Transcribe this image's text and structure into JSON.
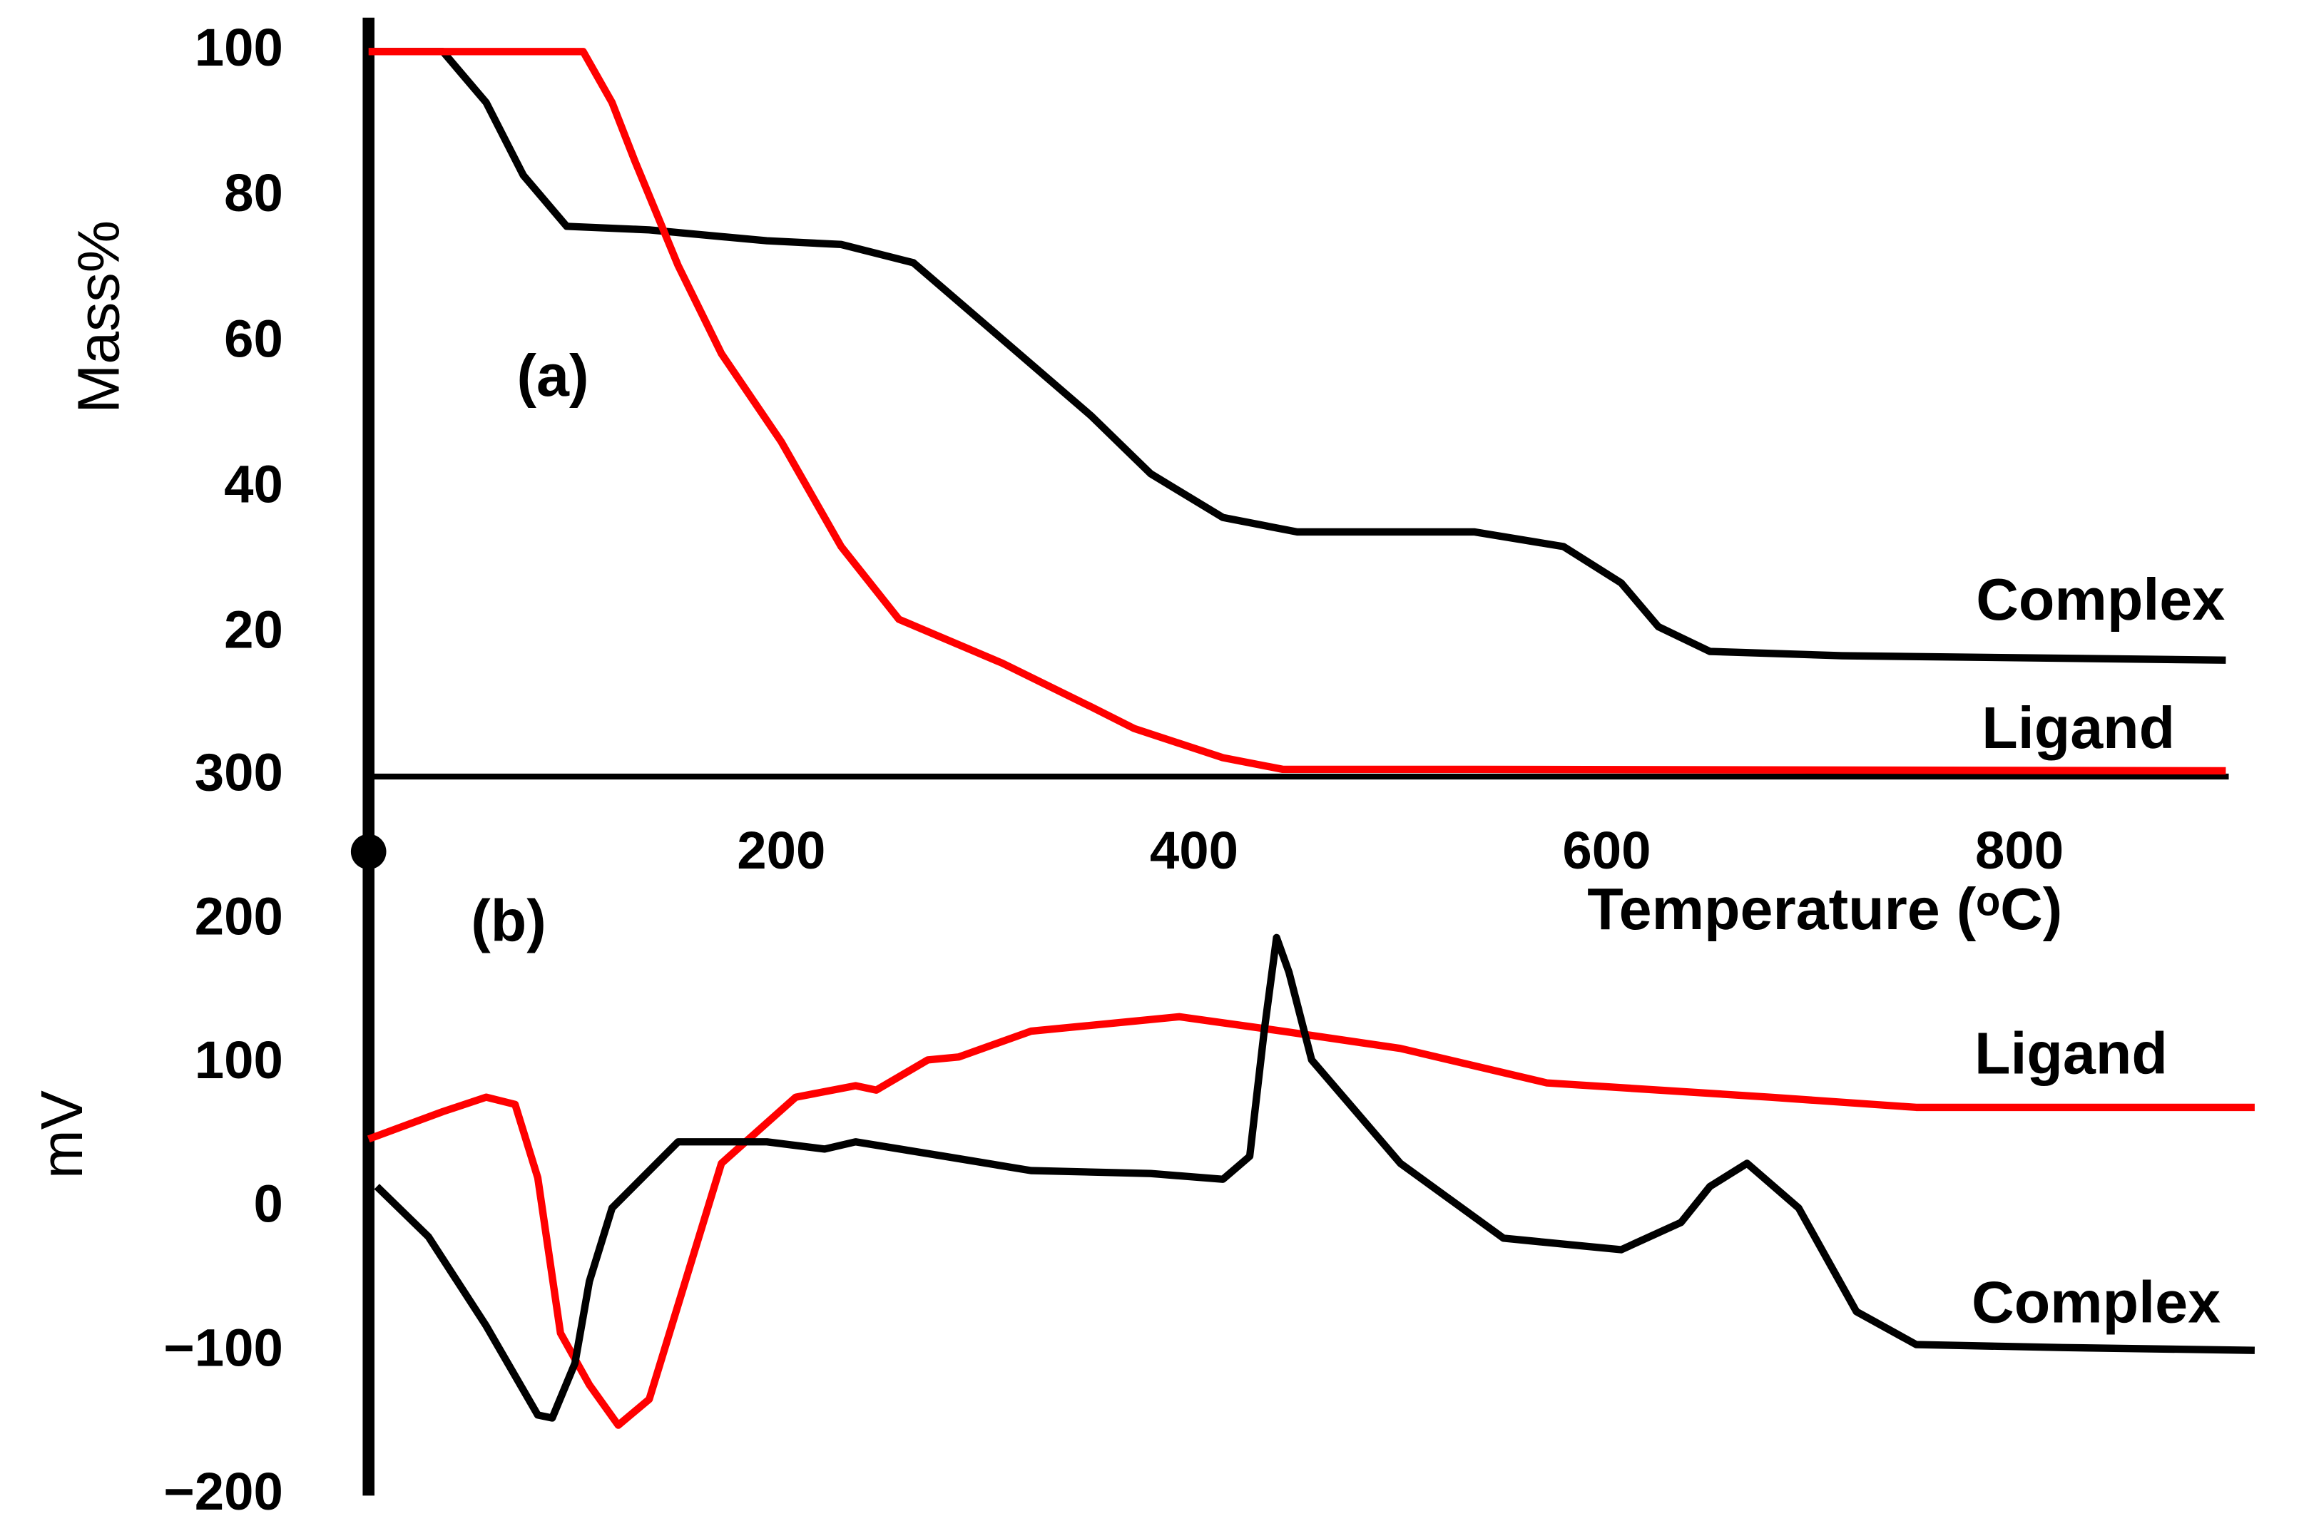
{
  "chart_data": [
    {
      "type": "line",
      "ylabel": "Mass%",
      "panel_label": "(a)",
      "xlabel": "Temperature (ᵒC)",
      "xlim": [
        0,
        900
      ],
      "xticks": [
        200,
        400,
        600,
        800
      ],
      "ylim": [
        0,
        100
      ],
      "yticks": [
        20,
        40,
        60,
        80,
        100
      ],
      "series": [
        {
          "name": "Complex",
          "color": "#000000",
          "x": [
            0,
            36,
            57,
            75,
            96,
            136,
            193,
            229,
            264,
            307,
            350,
            379,
            414,
            450,
            536,
            579,
            607,
            625,
            650,
            714,
            900
          ],
          "values": [
            100,
            100,
            93,
            83,
            76,
            75.5,
            74,
            73.5,
            71,
            60.5,
            50,
            42,
            36,
            34,
            34,
            32,
            27,
            21,
            17.6,
            17,
            16.4
          ]
        },
        {
          "name": "Ligand",
          "color": "#ff0000",
          "x": [
            0,
            104,
            118,
            129,
            150,
            171,
            200,
            229,
            257,
            307,
            350,
            371,
            414,
            443,
            536,
            900
          ],
          "values": [
            100,
            100,
            93,
            85,
            70.6,
            58.5,
            46.4,
            32,
            22,
            16,
            10,
            7,
            3,
            1.4,
            1.4,
            1.2
          ]
        }
      ]
    },
    {
      "type": "line",
      "ylabel": "mV",
      "panel_label": "(b)",
      "xlim": [
        0,
        900
      ],
      "ylim": [
        -200,
        300
      ],
      "yticks": [
        {
          "value": -200,
          "label": "−200"
        },
        {
          "value": -100,
          "label": "−100"
        },
        0,
        100,
        200,
        300
      ],
      "series": [
        {
          "name": "Ligand",
          "color": "#ff0000",
          "x": [
            0,
            36,
            57,
            71,
            82,
            93,
            107,
            121,
            136,
            171,
            207,
            236,
            246,
            271,
            286,
            321,
            393,
            443,
            500,
            571,
            679,
            750,
            821,
            914
          ],
          "values": [
            48,
            67,
            77,
            72,
            21,
            -87,
            -123,
            -151,
            -133,
            31,
            77,
            85,
            82,
            103,
            105,
            123,
            133,
            123,
            111,
            87,
            77,
            70,
            70,
            70
          ]
        },
        {
          "name": "Complex",
          "color": "#000000",
          "x": [
            4,
            29,
            57,
            82,
            89,
            100,
            107,
            118,
            150,
            193,
            221,
            236,
            279,
            321,
            379,
            414,
            427,
            434,
            440,
            446,
            457,
            500,
            550,
            607,
            636,
            650,
            668,
            693,
            721,
            750,
            821,
            914
          ],
          "values": [
            15,
            -20,
            -82,
            -144,
            -146,
            -108,
            -51,
            0,
            46,
            46,
            41,
            46,
            36,
            26,
            24,
            20,
            36,
            123,
            188,
            164,
            103,
            31,
            -21,
            -29,
            -10,
            15,
            31,
            0,
            -72,
            -95,
            -97,
            -99
          ]
        }
      ]
    }
  ]
}
